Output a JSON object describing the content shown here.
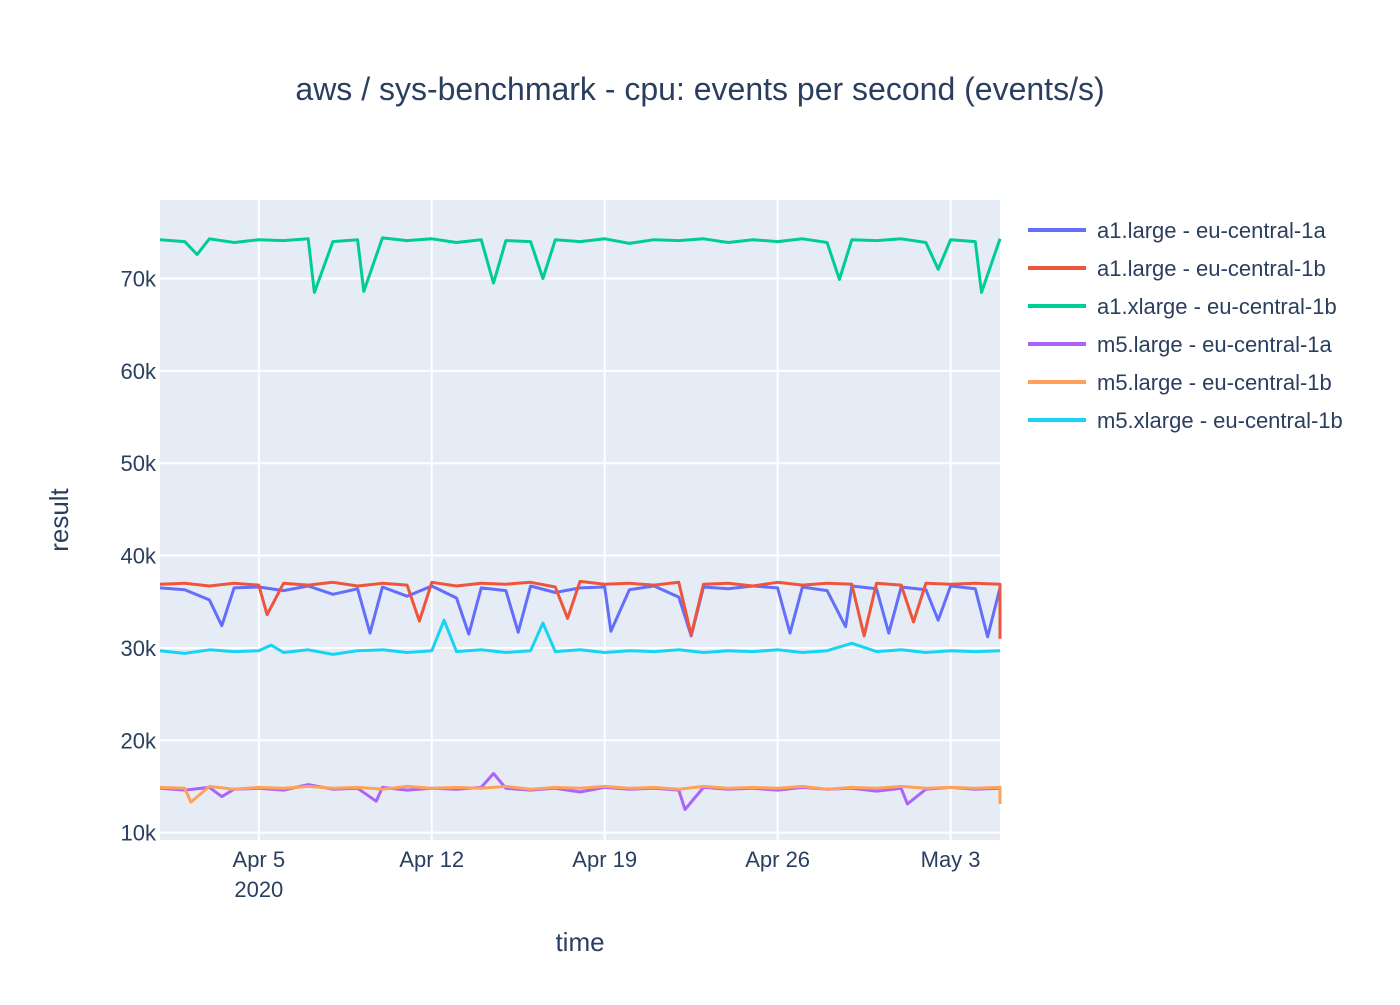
{
  "chart_data": {
    "type": "line",
    "title": "aws / sys-benchmark - cpu: events per second (events/s)",
    "xlabel": "time",
    "ylabel": "result",
    "x_range": [
      "2020-04-01",
      "2020-05-05"
    ],
    "ylim": [
      9200,
      78500
    ],
    "x_ticks": [
      {
        "date": "2020-04-05",
        "label": "Apr 5",
        "sublabel": "2020"
      },
      {
        "date": "2020-04-12",
        "label": "Apr 12",
        "sublabel": ""
      },
      {
        "date": "2020-04-19",
        "label": "Apr 19",
        "sublabel": ""
      },
      {
        "date": "2020-04-26",
        "label": "Apr 26",
        "sublabel": ""
      },
      {
        "date": "2020-05-03",
        "label": "May 3",
        "sublabel": ""
      }
    ],
    "y_ticks": [
      {
        "value": 10000,
        "label": "10k"
      },
      {
        "value": 20000,
        "label": "20k"
      },
      {
        "value": 30000,
        "label": "30k"
      },
      {
        "value": 40000,
        "label": "40k"
      },
      {
        "value": 50000,
        "label": "50k"
      },
      {
        "value": 60000,
        "label": "60k"
      },
      {
        "value": 70000,
        "label": "70k"
      }
    ],
    "grid": true,
    "legend_position": "right",
    "series": [
      {
        "name": "a1.large - eu-central-1a",
        "color": "#636efa",
        "points": [
          [
            "2020-04-01",
            36500
          ],
          [
            "2020-04-02",
            36300
          ],
          [
            "2020-04-03",
            35200
          ],
          [
            "2020-04-03 12:00",
            32400
          ],
          [
            "2020-04-04",
            36500
          ],
          [
            "2020-04-05",
            36600
          ],
          [
            "2020-04-06",
            36200
          ],
          [
            "2020-04-07",
            36700
          ],
          [
            "2020-04-08",
            35800
          ],
          [
            "2020-04-09",
            36400
          ],
          [
            "2020-04-09 12:00",
            31600
          ],
          [
            "2020-04-10",
            36600
          ],
          [
            "2020-04-11",
            35600
          ],
          [
            "2020-04-12",
            36700
          ],
          [
            "2020-04-13",
            35400
          ],
          [
            "2020-04-13 12:00",
            31500
          ],
          [
            "2020-04-14",
            36500
          ],
          [
            "2020-04-15",
            36200
          ],
          [
            "2020-04-15 12:00",
            31700
          ],
          [
            "2020-04-16",
            36700
          ],
          [
            "2020-04-17",
            36000
          ],
          [
            "2020-04-18",
            36500
          ],
          [
            "2020-04-19",
            36600
          ],
          [
            "2020-04-19 06:00",
            31800
          ],
          [
            "2020-04-20",
            36300
          ],
          [
            "2020-04-21",
            36700
          ],
          [
            "2020-04-22",
            35500
          ],
          [
            "2020-04-22 12:00",
            31300
          ],
          [
            "2020-04-23",
            36600
          ],
          [
            "2020-04-24",
            36400
          ],
          [
            "2020-04-25",
            36700
          ],
          [
            "2020-04-26",
            36500
          ],
          [
            "2020-04-26 12:00",
            31600
          ],
          [
            "2020-04-27",
            36600
          ],
          [
            "2020-04-28",
            36200
          ],
          [
            "2020-04-28 18:00",
            32300
          ],
          [
            "2020-04-29",
            36700
          ],
          [
            "2020-04-30",
            36400
          ],
          [
            "2020-04-30 12:00",
            31600
          ],
          [
            "2020-05-01",
            36600
          ],
          [
            "2020-05-02",
            36300
          ],
          [
            "2020-05-02 12:00",
            33000
          ],
          [
            "2020-05-03",
            36700
          ],
          [
            "2020-05-04",
            36400
          ],
          [
            "2020-05-04 12:00",
            31200
          ],
          [
            "2020-05-05",
            36500
          ]
        ]
      },
      {
        "name": "a1.large - eu-central-1b",
        "color": "#ef553b",
        "points": [
          [
            "2020-04-01",
            36900
          ],
          [
            "2020-04-02",
            37000
          ],
          [
            "2020-04-03",
            36700
          ],
          [
            "2020-04-04",
            37000
          ],
          [
            "2020-04-05",
            36800
          ],
          [
            "2020-04-05 08:00",
            33600
          ],
          [
            "2020-04-06",
            37000
          ],
          [
            "2020-04-07",
            36800
          ],
          [
            "2020-04-08",
            37100
          ],
          [
            "2020-04-09",
            36700
          ],
          [
            "2020-04-10",
            37000
          ],
          [
            "2020-04-11",
            36800
          ],
          [
            "2020-04-11 12:00",
            32900
          ],
          [
            "2020-04-12",
            37100
          ],
          [
            "2020-04-13",
            36700
          ],
          [
            "2020-04-14",
            37000
          ],
          [
            "2020-04-15",
            36900
          ],
          [
            "2020-04-16",
            37100
          ],
          [
            "2020-04-17",
            36600
          ],
          [
            "2020-04-17 12:00",
            33200
          ],
          [
            "2020-04-18",
            37200
          ],
          [
            "2020-04-19",
            36900
          ],
          [
            "2020-04-20",
            37000
          ],
          [
            "2020-04-21",
            36800
          ],
          [
            "2020-04-22",
            37100
          ],
          [
            "2020-04-22 12:00",
            31400
          ],
          [
            "2020-04-23",
            36900
          ],
          [
            "2020-04-24",
            37000
          ],
          [
            "2020-04-25",
            36700
          ],
          [
            "2020-04-26",
            37100
          ],
          [
            "2020-04-27",
            36800
          ],
          [
            "2020-04-28",
            37000
          ],
          [
            "2020-04-29",
            36900
          ],
          [
            "2020-04-29 12:00",
            31300
          ],
          [
            "2020-04-30",
            37000
          ],
          [
            "2020-05-01",
            36800
          ],
          [
            "2020-05-01 12:00",
            32800
          ],
          [
            "2020-05-02",
            37000
          ],
          [
            "2020-05-03",
            36900
          ],
          [
            "2020-05-04",
            37000
          ],
          [
            "2020-05-05",
            36900
          ],
          [
            "2020-05-05 00:00",
            31000
          ]
        ]
      },
      {
        "name": "a1.xlarge - eu-central-1b",
        "color": "#00cc96",
        "points": [
          [
            "2020-04-01",
            74200
          ],
          [
            "2020-04-02",
            74000
          ],
          [
            "2020-04-02 12:00",
            72600
          ],
          [
            "2020-04-03",
            74300
          ],
          [
            "2020-04-04",
            73900
          ],
          [
            "2020-04-05",
            74200
          ],
          [
            "2020-04-06",
            74100
          ],
          [
            "2020-04-07",
            74300
          ],
          [
            "2020-04-07 06:00",
            68500
          ],
          [
            "2020-04-08",
            74000
          ],
          [
            "2020-04-09",
            74200
          ],
          [
            "2020-04-09 06:00",
            68600
          ],
          [
            "2020-04-10",
            74400
          ],
          [
            "2020-04-11",
            74100
          ],
          [
            "2020-04-12",
            74300
          ],
          [
            "2020-04-13",
            73900
          ],
          [
            "2020-04-14",
            74200
          ],
          [
            "2020-04-14 12:00",
            69500
          ],
          [
            "2020-04-15",
            74100
          ],
          [
            "2020-04-16",
            74000
          ],
          [
            "2020-04-16 12:00",
            70000
          ],
          [
            "2020-04-17",
            74200
          ],
          [
            "2020-04-18",
            74000
          ],
          [
            "2020-04-19",
            74300
          ],
          [
            "2020-04-20",
            73800
          ],
          [
            "2020-04-21",
            74200
          ],
          [
            "2020-04-22",
            74100
          ],
          [
            "2020-04-23",
            74300
          ],
          [
            "2020-04-24",
            73900
          ],
          [
            "2020-04-25",
            74200
          ],
          [
            "2020-04-26",
            74000
          ],
          [
            "2020-04-27",
            74300
          ],
          [
            "2020-04-28",
            73900
          ],
          [
            "2020-04-28 12:00",
            69900
          ],
          [
            "2020-04-29",
            74200
          ],
          [
            "2020-04-30",
            74100
          ],
          [
            "2020-05-01",
            74300
          ],
          [
            "2020-05-02",
            73900
          ],
          [
            "2020-05-02 12:00",
            71000
          ],
          [
            "2020-05-03",
            74200
          ],
          [
            "2020-05-04",
            74000
          ],
          [
            "2020-05-04 06:00",
            68500
          ],
          [
            "2020-05-05",
            74300
          ]
        ]
      },
      {
        "name": "m5.large - eu-central-1a",
        "color": "#ab63fa",
        "points": [
          [
            "2020-04-01",
            14800
          ],
          [
            "2020-04-02",
            14600
          ],
          [
            "2020-04-03",
            14900
          ],
          [
            "2020-04-03 12:00",
            13900
          ],
          [
            "2020-04-04",
            14700
          ],
          [
            "2020-04-05",
            14800
          ],
          [
            "2020-04-06",
            14600
          ],
          [
            "2020-04-07",
            15200
          ],
          [
            "2020-04-08",
            14700
          ],
          [
            "2020-04-09",
            14800
          ],
          [
            "2020-04-09 18:00",
            13400
          ],
          [
            "2020-04-10",
            14900
          ],
          [
            "2020-04-11",
            14600
          ],
          [
            "2020-04-12",
            14800
          ],
          [
            "2020-04-13",
            14700
          ],
          [
            "2020-04-14",
            14900
          ],
          [
            "2020-04-14 12:00",
            16400
          ],
          [
            "2020-04-15",
            14800
          ],
          [
            "2020-04-16",
            14600
          ],
          [
            "2020-04-17",
            14800
          ],
          [
            "2020-04-18",
            14400
          ],
          [
            "2020-04-19",
            14900
          ],
          [
            "2020-04-20",
            14700
          ],
          [
            "2020-04-21",
            14800
          ],
          [
            "2020-04-22",
            14600
          ],
          [
            "2020-04-22 06:00",
            12500
          ],
          [
            "2020-04-23",
            14900
          ],
          [
            "2020-04-24",
            14700
          ],
          [
            "2020-04-25",
            14800
          ],
          [
            "2020-04-26",
            14600
          ],
          [
            "2020-04-27",
            14900
          ],
          [
            "2020-04-28",
            14700
          ],
          [
            "2020-04-29",
            14800
          ],
          [
            "2020-04-30",
            14500
          ],
          [
            "2020-05-01",
            14800
          ],
          [
            "2020-05-01 06:00",
            13100
          ],
          [
            "2020-05-02",
            14700
          ],
          [
            "2020-05-03",
            14900
          ],
          [
            "2020-05-04",
            14700
          ],
          [
            "2020-05-05",
            14800
          ]
        ]
      },
      {
        "name": "m5.large - eu-central-1b",
        "color": "#ffa15a",
        "points": [
          [
            "2020-04-01",
            14900
          ],
          [
            "2020-04-02",
            14800
          ],
          [
            "2020-04-02 06:00",
            13300
          ],
          [
            "2020-04-03",
            15000
          ],
          [
            "2020-04-04",
            14700
          ],
          [
            "2020-04-05",
            14900
          ],
          [
            "2020-04-06",
            14800
          ],
          [
            "2020-04-07",
            15000
          ],
          [
            "2020-04-08",
            14800
          ],
          [
            "2020-04-09",
            14900
          ],
          [
            "2020-04-10",
            14700
          ],
          [
            "2020-04-11",
            15000
          ],
          [
            "2020-04-12",
            14800
          ],
          [
            "2020-04-13",
            14900
          ],
          [
            "2020-04-14",
            14800
          ],
          [
            "2020-04-15",
            15000
          ],
          [
            "2020-04-16",
            14700
          ],
          [
            "2020-04-17",
            14900
          ],
          [
            "2020-04-18",
            14800
          ],
          [
            "2020-04-19",
            15000
          ],
          [
            "2020-04-20",
            14800
          ],
          [
            "2020-04-21",
            14900
          ],
          [
            "2020-04-22",
            14700
          ],
          [
            "2020-04-23",
            15000
          ],
          [
            "2020-04-24",
            14800
          ],
          [
            "2020-04-25",
            14900
          ],
          [
            "2020-04-26",
            14800
          ],
          [
            "2020-04-27",
            15000
          ],
          [
            "2020-04-28",
            14700
          ],
          [
            "2020-04-29",
            14900
          ],
          [
            "2020-04-30",
            14800
          ],
          [
            "2020-05-01",
            15000
          ],
          [
            "2020-05-02",
            14800
          ],
          [
            "2020-05-03",
            14900
          ],
          [
            "2020-05-04",
            14800
          ],
          [
            "2020-05-05",
            14900
          ],
          [
            "2020-05-05 00:00",
            13100
          ]
        ]
      },
      {
        "name": "m5.xlarge - eu-central-1b",
        "color": "#19d3f3",
        "points": [
          [
            "2020-04-01",
            29700
          ],
          [
            "2020-04-02",
            29400
          ],
          [
            "2020-04-03",
            29800
          ],
          [
            "2020-04-04",
            29600
          ],
          [
            "2020-04-05",
            29700
          ],
          [
            "2020-04-05 12:00",
            30300
          ],
          [
            "2020-04-06",
            29500
          ],
          [
            "2020-04-07",
            29800
          ],
          [
            "2020-04-08",
            29300
          ],
          [
            "2020-04-09",
            29700
          ],
          [
            "2020-04-10",
            29800
          ],
          [
            "2020-04-11",
            29500
          ],
          [
            "2020-04-12",
            29700
          ],
          [
            "2020-04-12 12:00",
            33000
          ],
          [
            "2020-04-13",
            29600
          ],
          [
            "2020-04-14",
            29800
          ],
          [
            "2020-04-15",
            29500
          ],
          [
            "2020-04-16",
            29700
          ],
          [
            "2020-04-16 12:00",
            32700
          ],
          [
            "2020-04-17",
            29600
          ],
          [
            "2020-04-18",
            29800
          ],
          [
            "2020-04-19",
            29500
          ],
          [
            "2020-04-20",
            29700
          ],
          [
            "2020-04-21",
            29600
          ],
          [
            "2020-04-22",
            29800
          ],
          [
            "2020-04-23",
            29500
          ],
          [
            "2020-04-24",
            29700
          ],
          [
            "2020-04-25",
            29600
          ],
          [
            "2020-04-26",
            29800
          ],
          [
            "2020-04-27",
            29500
          ],
          [
            "2020-04-28",
            29700
          ],
          [
            "2020-04-29",
            30500
          ],
          [
            "2020-04-30",
            29600
          ],
          [
            "2020-05-01",
            29800
          ],
          [
            "2020-05-02",
            29500
          ],
          [
            "2020-05-03",
            29700
          ],
          [
            "2020-05-04",
            29600
          ],
          [
            "2020-05-05",
            29700
          ]
        ]
      }
    ]
  }
}
